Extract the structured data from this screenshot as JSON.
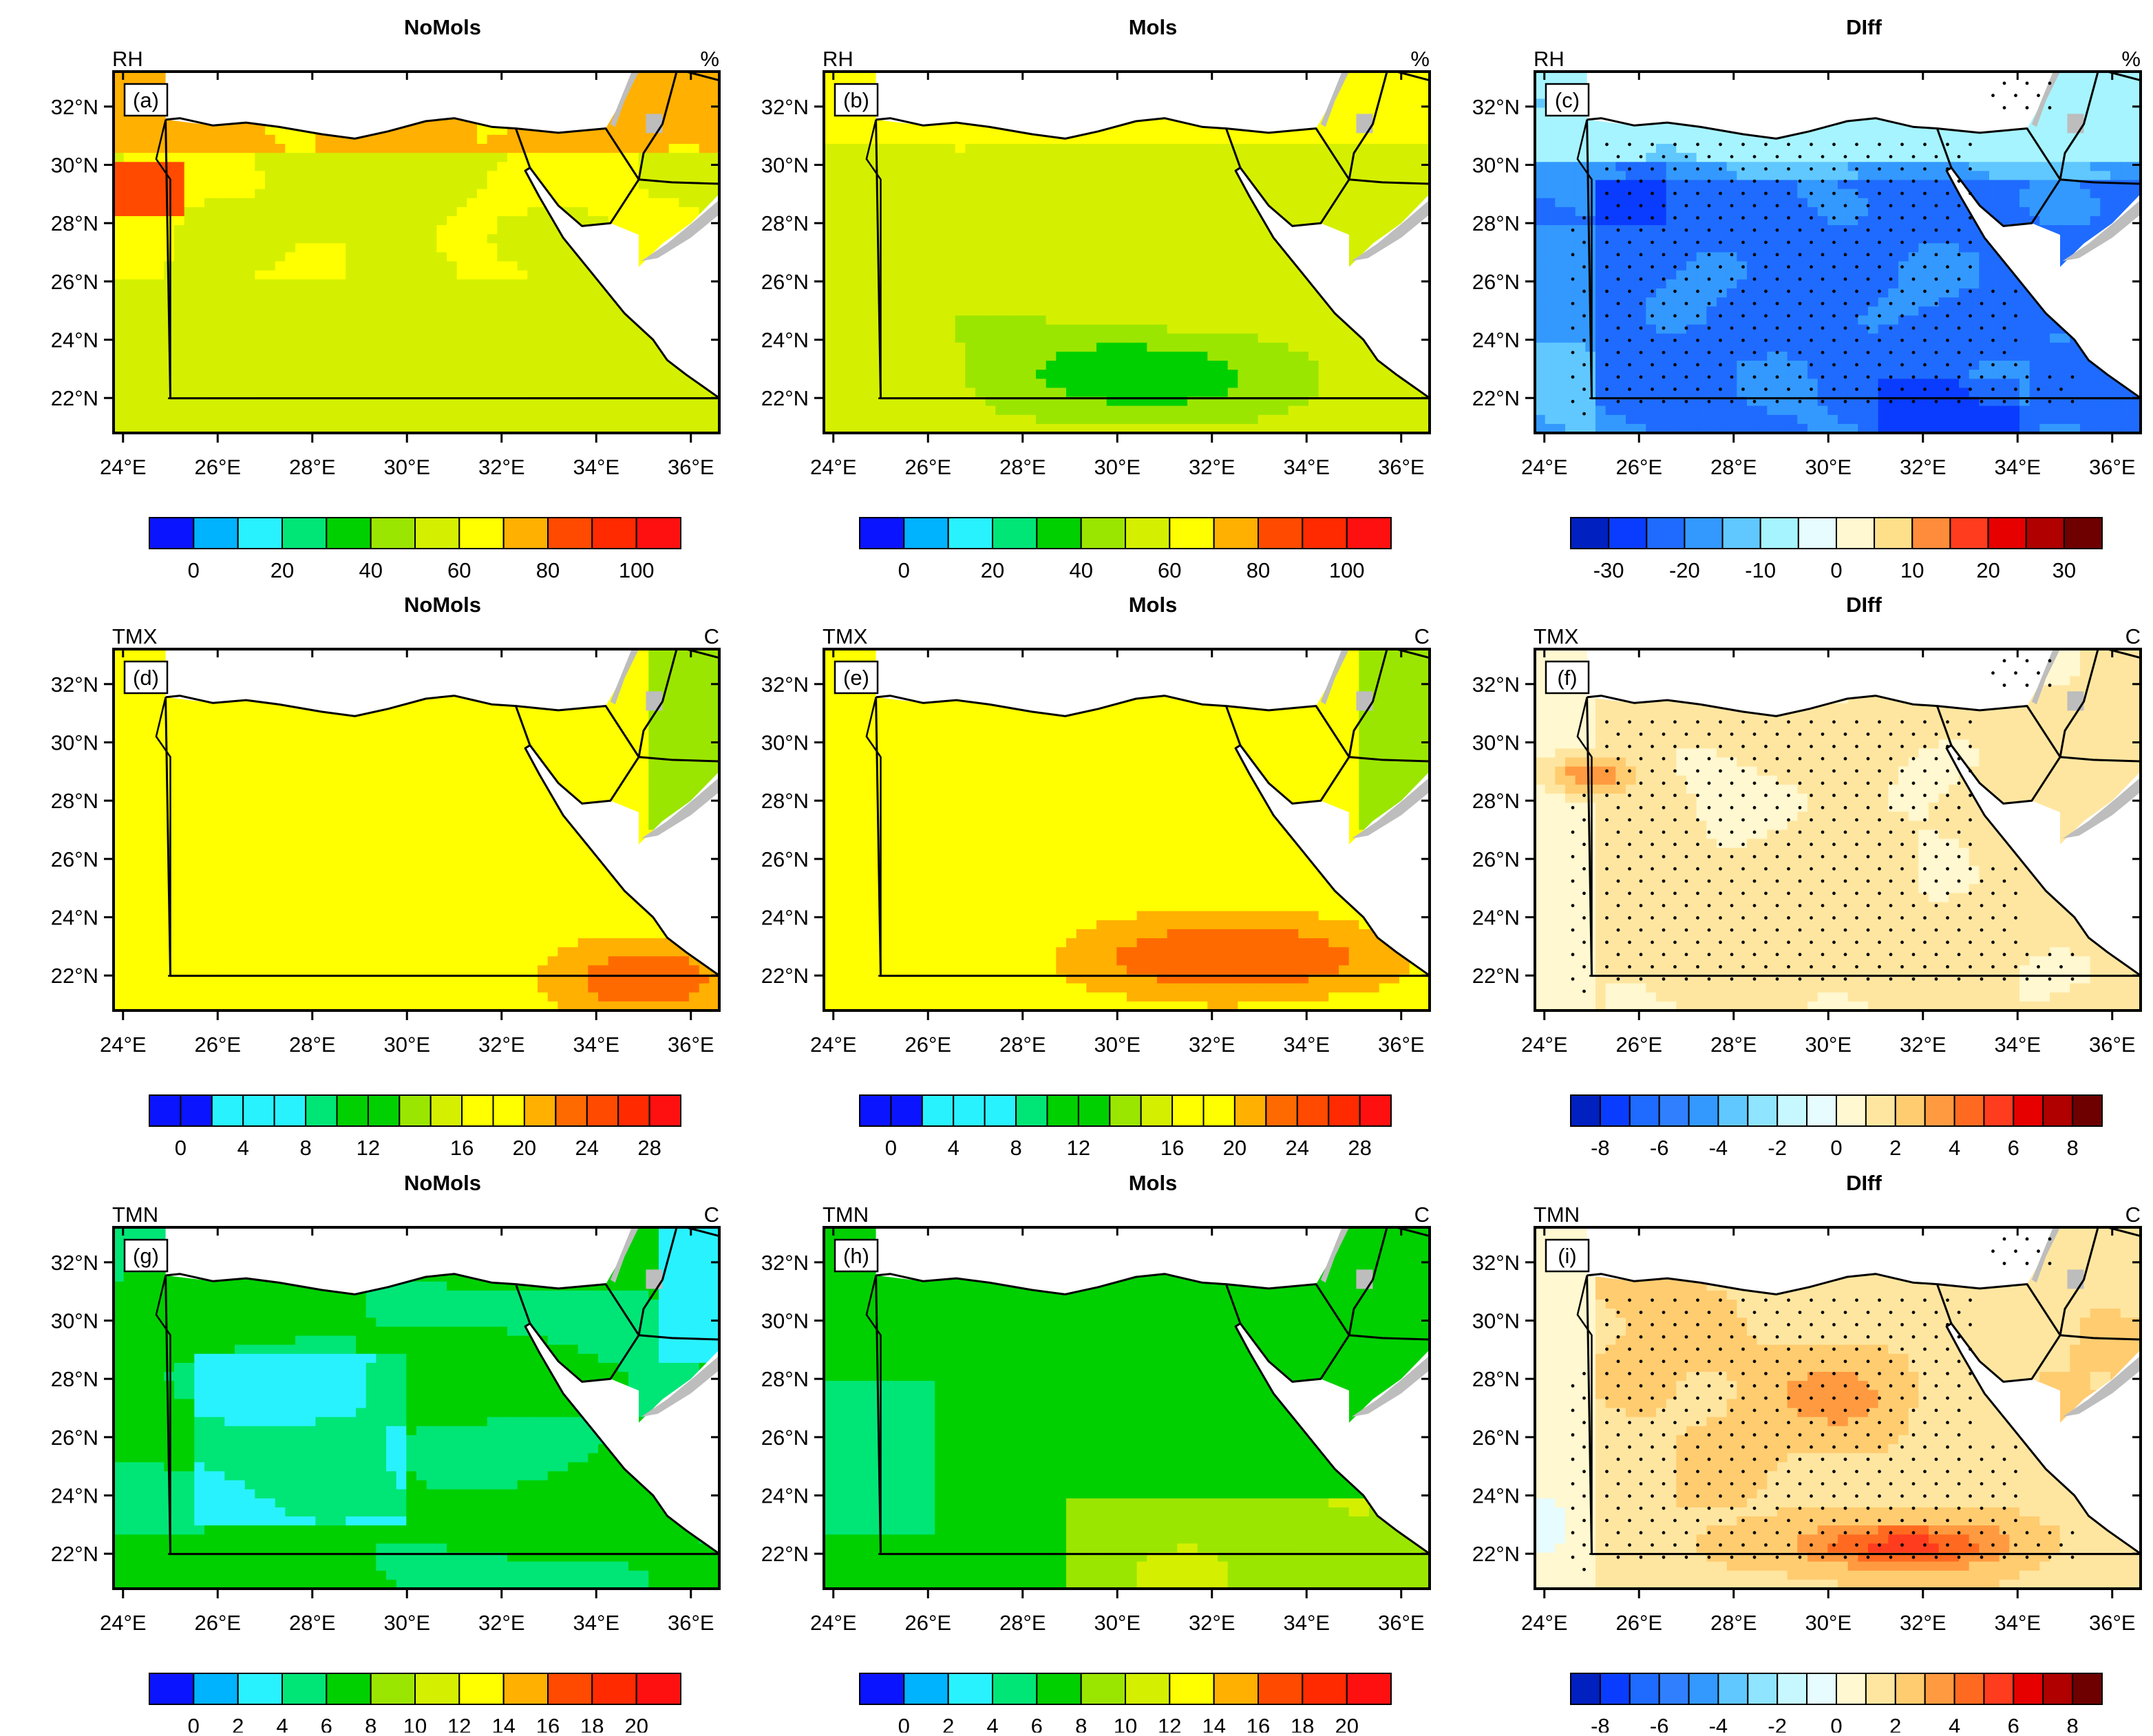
{
  "colors": {
    "ocean": "#ffffff",
    "outside_land": "#bdbdbd",
    "dots": "#000000"
  },
  "axes": {
    "lon_ticks": [
      "24°E",
      "26°E",
      "28°E",
      "30°E",
      "32°E",
      "34°E",
      "36°E"
    ],
    "lat_ticks": [
      "32°N",
      "30°N",
      "28°N",
      "26°N",
      "24°N",
      "22°N"
    ],
    "lon_range": [
      23.8,
      36.6
    ],
    "lat_range": [
      20.8,
      33.2
    ]
  },
  "colorbars": {
    "rh": {
      "labels": [
        "0",
        "20",
        "40",
        "60",
        "80",
        "100"
      ],
      "colors": [
        "#0a14ff",
        "#00b3ff",
        "#29f2ff",
        "#00e676",
        "#00d000",
        "#9be600",
        "#d4f000",
        "#ffff00",
        "#ffb000",
        "#ff4a00",
        "#ff2a00",
        "#ff1010"
      ]
    },
    "tmx": {
      "labels": [
        "0",
        "4",
        "8",
        "12",
        "16",
        "20",
        "24",
        "28"
      ],
      "colors": [
        "#0a14ff",
        "#0a14ff",
        "#29f2ff",
        "#29f2ff",
        "#29f2ff",
        "#00e676",
        "#00d000",
        "#00d000",
        "#9be600",
        "#d4f000",
        "#ffff00",
        "#ffff00",
        "#ffb000",
        "#ff6a00",
        "#ff4a00",
        "#ff2a00",
        "#ff1010"
      ]
    },
    "tmn": {
      "labels": [
        "0",
        "2",
        "4",
        "6",
        "8",
        "10",
        "12",
        "14",
        "16",
        "18",
        "20"
      ],
      "colors": [
        "#0a14ff",
        "#00b3ff",
        "#29f2ff",
        "#00e676",
        "#00d000",
        "#9be600",
        "#d4f000",
        "#ffff00",
        "#ffb000",
        "#ff4a00",
        "#ff2a00",
        "#ff1010"
      ]
    },
    "diff_rh": {
      "labels": [
        "-30",
        "-20",
        "-10",
        "0",
        "10",
        "20",
        "30"
      ],
      "colors": [
        "#0020c0",
        "#0a3cff",
        "#1f6bff",
        "#3399ff",
        "#60c8ff",
        "#a6f4ff",
        "#e6fcff",
        "#fff8d0",
        "#ffe08a",
        "#ff8c3a",
        "#ff3c1e",
        "#e60000",
        "#b00000",
        "#6e0000"
      ]
    },
    "diff_t": {
      "labels": [
        "-8",
        "-6",
        "-4",
        "-2",
        "0",
        "2",
        "4",
        "6",
        "8"
      ],
      "colors": [
        "#0020c0",
        "#0a3cff",
        "#1f6bff",
        "#2f7fff",
        "#3399ff",
        "#60c8ff",
        "#8fe4ff",
        "#c8f8ff",
        "#e6fcff",
        "#fff8d0",
        "#ffe6a0",
        "#ffcc70",
        "#ff9a40",
        "#ff6a20",
        "#ff3c1e",
        "#e60000",
        "#b00000",
        "#6e0000"
      ]
    }
  },
  "panels": [
    {
      "id": "a",
      "label": "(a)",
      "title": "NoMols",
      "left_label": "RH",
      "right_label": "%",
      "bar": "rh",
      "base": 6.8,
      "seed": 1,
      "field": "rh_no",
      "dots": false
    },
    {
      "id": "b",
      "label": "(b)",
      "title": "Mols",
      "left_label": "RH",
      "right_label": "%",
      "bar": "rh",
      "base": 6.0,
      "seed": 2,
      "field": "rh_mo",
      "dots": false
    },
    {
      "id": "c",
      "label": "(c)",
      "title": "DIff",
      "left_label": "RH",
      "right_label": "%",
      "bar": "diff_rh",
      "base": 3.2,
      "seed": 3,
      "field": "rh_diff",
      "dots": true
    },
    {
      "id": "d",
      "label": "(d)",
      "title": "NoMols",
      "left_label": "TMX",
      "right_label": "C",
      "bar": "tmx",
      "base": 10.0,
      "seed": 4,
      "field": "tmx_no",
      "dots": false
    },
    {
      "id": "e",
      "label": "(e)",
      "title": "Mols",
      "left_label": "TMX",
      "right_label": "C",
      "bar": "tmx",
      "base": 10.0,
      "seed": 5,
      "field": "tmx_mo",
      "dots": false
    },
    {
      "id": "f",
      "label": "(f)",
      "title": "DIff",
      "left_label": "TMX",
      "right_label": "C",
      "bar": "diff_t",
      "base": 9.6,
      "seed": 6,
      "field": "t_diff_f",
      "dots": true
    },
    {
      "id": "g",
      "label": "(g)",
      "title": "NoMols",
      "left_label": "TMN",
      "right_label": "C",
      "bar": "tmn",
      "base": 3.4,
      "seed": 7,
      "field": "tmn_no",
      "dots": false
    },
    {
      "id": "h",
      "label": "(h)",
      "title": "Mols",
      "left_label": "TMN",
      "right_label": "C",
      "bar": "tmn",
      "base": 3.9,
      "seed": 8,
      "field": "tmn_mo",
      "dots": false
    },
    {
      "id": "i",
      "label": "(i)",
      "title": "DIff",
      "left_label": "TMN",
      "right_label": "C",
      "bar": "diff_t",
      "base": 10.4,
      "seed": 9,
      "field": "t_diff_i",
      "dots": true
    }
  ],
  "geo": {
    "egypt_boundary": [
      [
        24.9,
        31.55
      ],
      [
        25.2,
        31.6
      ],
      [
        25.9,
        31.35
      ],
      [
        26.6,
        31.45
      ],
      [
        27.3,
        31.3
      ],
      [
        28.2,
        31.05
      ],
      [
        28.9,
        30.9
      ],
      [
        29.6,
        31.15
      ],
      [
        30.4,
        31.5
      ],
      [
        31.0,
        31.6
      ],
      [
        31.8,
        31.3
      ],
      [
        32.3,
        31.25
      ],
      [
        33.2,
        31.1
      ],
      [
        34.2,
        31.25
      ],
      [
        34.9,
        29.5
      ],
      [
        34.3,
        28.0
      ],
      [
        33.7,
        27.9
      ],
      [
        33.2,
        28.6
      ],
      [
        32.6,
        29.9
      ],
      [
        32.5,
        29.8
      ],
      [
        32.8,
        28.9
      ],
      [
        33.3,
        27.5
      ],
      [
        33.9,
        26.3
      ],
      [
        34.6,
        24.9
      ],
      [
        35.2,
        24.0
      ],
      [
        35.5,
        23.3
      ],
      [
        35.9,
        22.8
      ],
      [
        36.6,
        22.0
      ],
      [
        36.6,
        21.99
      ],
      [
        25.0,
        21.99
      ],
      [
        24.9,
        31.55
      ]
    ],
    "sinai_cut": [
      [
        32.3,
        31.25
      ],
      [
        32.6,
        29.9
      ]
    ],
    "east_land": [
      [
        34.2,
        31.25
      ],
      [
        34.9,
        33.2
      ],
      [
        36.6,
        33.2
      ],
      [
        36.6,
        29.0
      ],
      [
        36.0,
        28.0
      ],
      [
        35.4,
        27.3
      ],
      [
        34.9,
        26.5
      ],
      [
        34.9,
        27.6
      ],
      [
        34.3,
        28.0
      ],
      [
        34.9,
        29.5
      ]
    ],
    "israel_jordan_border": [
      [
        34.9,
        29.5
      ],
      [
        35.0,
        30.4
      ],
      [
        35.4,
        31.4
      ],
      [
        35.6,
        32.6
      ],
      [
        35.7,
        33.2
      ]
    ],
    "jordan_saudi_border": [
      [
        34.9,
        29.5
      ],
      [
        35.6,
        29.4
      ],
      [
        36.6,
        29.35
      ]
    ],
    "east_border_2": [
      [
        35.9,
        33.2
      ],
      [
        36.6,
        32.9
      ]
    ],
    "libya_border": [
      [
        25.0,
        21.99
      ],
      [
        25.0,
        29.5
      ],
      [
        24.7,
        30.2
      ],
      [
        24.9,
        31.55
      ]
    ],
    "sudan_border": [
      [
        24.95,
        21.99
      ],
      [
        36.6,
        22.0
      ]
    ]
  }
}
